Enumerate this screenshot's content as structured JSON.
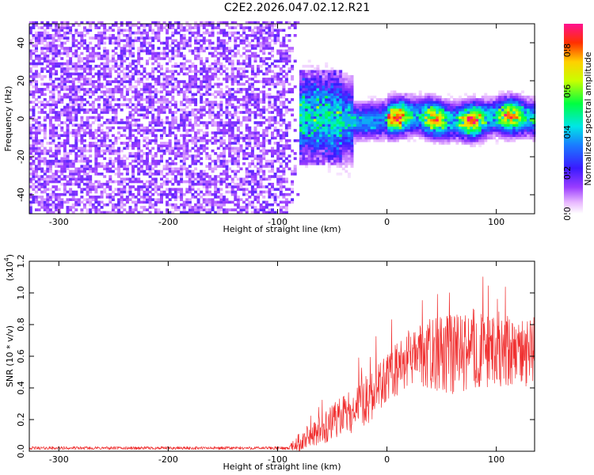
{
  "title": "C2E2.2026.047.02.12.R21",
  "chart_data": [
    {
      "type": "heatmap",
      "name": "spectrogram",
      "xlabel": "Height of straight line (km)",
      "ylabel": "Frequency (Hz)",
      "xlim": [
        -327,
        135
      ],
      "ylim": [
        -50,
        50
      ],
      "xticks": [
        -300,
        -200,
        -100,
        0,
        100
      ],
      "yticks": [
        -40,
        -20,
        0,
        20,
        40
      ],
      "noise_region": [
        -327,
        -80
      ],
      "signal_center_hz": 0,
      "colorbar": {
        "label": "Normalized spectral amplitude",
        "range": [
          0.0,
          0.93
        ],
        "ticks": [
          0.0,
          0.2,
          0.4,
          0.6,
          0.8
        ],
        "tick_labels": [
          "0.0",
          "0.2",
          "0.4",
          "0.6",
          "0.8"
        ]
      }
    },
    {
      "type": "line",
      "name": "snr",
      "xlabel": "Height of straight line (km)",
      "ylabel": "SNR (10 * v/v)",
      "scale_label": "(x10",
      "scale_exp": "4",
      "scale_close": ")",
      "color": "#f03030",
      "xlim": [
        -327,
        135
      ],
      "ylim": [
        0,
        1.2
      ],
      "xticks": [
        -300,
        -200,
        -100,
        0,
        100
      ],
      "yticks": [
        0.0,
        0.2,
        0.4,
        0.6,
        0.8,
        1.0,
        1.2
      ],
      "ytick_labels": [
        "0.0",
        "0.2",
        "0.4",
        "0.6",
        "0.8",
        "1.0",
        "1.2"
      ],
      "envelope": {
        "x": [
          -327,
          -90,
          -80,
          -60,
          -40,
          -20,
          0,
          20,
          40,
          60,
          80,
          100,
          120,
          135
        ],
        "mid": [
          0.02,
          0.02,
          0.06,
          0.14,
          0.22,
          0.32,
          0.45,
          0.58,
          0.62,
          0.6,
          0.65,
          0.62,
          0.62,
          0.62
        ],
        "amp": [
          0.01,
          0.01,
          0.06,
          0.1,
          0.13,
          0.16,
          0.17,
          0.18,
          0.22,
          0.26,
          0.26,
          0.22,
          0.22,
          0.2
        ]
      }
    }
  ]
}
